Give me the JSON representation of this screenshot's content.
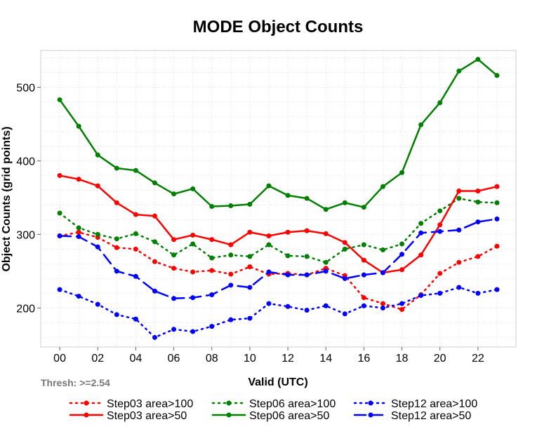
{
  "chart_data": {
    "type": "line",
    "title": "MODE Object Counts",
    "xlabel": "Valid (UTC)",
    "ylabel": "Object Counts (grid points)",
    "annotation": "Thresh: >=2.54",
    "x": [
      0,
      1,
      2,
      3,
      4,
      5,
      6,
      7,
      8,
      9,
      10,
      11,
      12,
      13,
      14,
      15,
      16,
      17,
      18,
      19,
      20,
      21,
      22,
      23
    ],
    "xlim": [
      -1,
      24
    ],
    "ylim": [
      147,
      550
    ],
    "xticks": [
      0,
      2,
      4,
      6,
      8,
      10,
      12,
      14,
      16,
      18,
      20,
      22
    ],
    "xtick_labels": [
      "00",
      "02",
      "04",
      "06",
      "08",
      "10",
      "12",
      "14",
      "16",
      "18",
      "20",
      "22"
    ],
    "yticks": [
      200,
      300,
      400,
      500
    ],
    "ytick_labels": [
      "200",
      "300",
      "400",
      "500"
    ],
    "grid": true,
    "legend_position": "bottom",
    "series": [
      {
        "name": "Step03 area>100",
        "color": "#ff0000",
        "style": "dotted",
        "values": [
          298,
          303,
          296,
          282,
          280,
          263,
          254,
          249,
          251,
          246,
          256,
          246,
          247,
          245,
          254,
          244,
          214,
          206,
          198,
          218,
          247,
          262,
          270,
          284
        ]
      },
      {
        "name": "Step06 area>100",
        "color": "#008000",
        "style": "dotted",
        "values": [
          329,
          309,
          300,
          294,
          301,
          290,
          272,
          287,
          268,
          272,
          270,
          286,
          271,
          270,
          262,
          280,
          286,
          279,
          287,
          315,
          332,
          349,
          344,
          343
        ]
      },
      {
        "name": "Step12 area>100",
        "color": "#0000ff",
        "style": "dotted",
        "values": [
          225,
          216,
          205,
          191,
          185,
          160,
          171,
          168,
          175,
          184,
          186,
          206,
          202,
          197,
          203,
          192,
          203,
          200,
          206,
          217,
          220,
          228,
          220,
          225
        ]
      },
      {
        "name": "Step03 area>50",
        "color": "#ff0000",
        "style": "solid",
        "values": [
          380,
          375,
          366,
          343,
          327,
          325,
          293,
          299,
          293,
          286,
          303,
          298,
          303,
          305,
          301,
          289,
          265,
          248,
          252,
          272,
          313,
          359,
          359,
          365
        ]
      },
      {
        "name": "Step06 area>50",
        "color": "#008000",
        "style": "solid",
        "values": [
          483,
          447,
          408,
          390,
          387,
          370,
          355,
          362,
          338,
          339,
          341,
          366,
          353,
          349,
          334,
          343,
          337,
          365,
          384,
          449,
          479,
          522,
          538,
          516
        ]
      },
      {
        "name": "Step12 area>50",
        "color": "#0000ff",
        "style": "dashed",
        "values": [
          298,
          297,
          283,
          250,
          243,
          223,
          213,
          214,
          218,
          231,
          228,
          249,
          245,
          245,
          250,
          240,
          245,
          248,
          273,
          302,
          304,
          306,
          317,
          321
        ]
      }
    ]
  }
}
